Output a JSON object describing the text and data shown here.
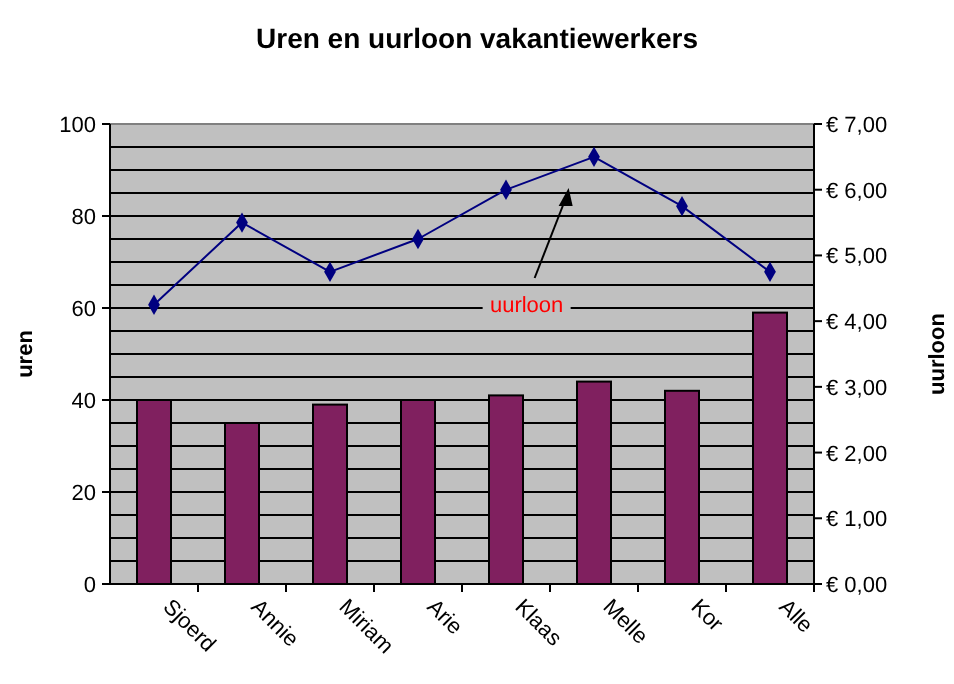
{
  "chart_data": {
    "type": "bar",
    "title": "Uren en uurloon vakantiewerkers",
    "ylabel": "uren",
    "y2label": "uurloon",
    "categories": [
      "Sjoerd",
      "Annie",
      "Miriam",
      "Arie",
      "Klaas",
      "Melle",
      "Kor",
      "Alle"
    ],
    "series": [
      {
        "color": "#80205f",
        "values": [
          40,
          35,
          39,
          40,
          41,
          44,
          42,
          59
        ]
      },
      {
        "type": "line",
        "axis": "y2",
        "color": "#000080",
        "marker": "diamond",
        "line_style": "solid",
        "values": [
          4.25,
          5.5,
          4.75,
          5.25,
          6.0,
          6.5,
          5.75,
          4.75
        ]
      }
    ],
    "ylim": [
      0,
      100
    ],
    "yticks": [
      0,
      {
        "value": 5,
        "label": null
      },
      {
        "value": 10,
        "label": null
      },
      {
        "value": 15,
        "label": null
      },
      20,
      {
        "value": 25,
        "label": null
      },
      {
        "value": 30,
        "label": null
      },
      {
        "value": 35,
        "label": null
      },
      40,
      {
        "value": 45,
        "label": null
      },
      {
        "value": 50,
        "label": null
      },
      {
        "value": 55,
        "label": null
      },
      60,
      {
        "value": 65,
        "label": null
      },
      {
        "value": 70,
        "label": null
      },
      {
        "value": 75,
        "label": null
      },
      80,
      {
        "value": 85,
        "label": null
      },
      {
        "value": 90,
        "label": null
      },
      {
        "value": 95,
        "label": null
      },
      100
    ],
    "y2lim": [
      0,
      7
    ],
    "y2ticks": [
      {
        "value": 0,
        "label": "€ 0,00"
      },
      {
        "value": 1,
        "label": "€ 1,00"
      },
      {
        "value": 2,
        "label": "€ 2,00"
      },
      {
        "value": 3,
        "label": "€ 3,00"
      },
      {
        "value": 4,
        "label": "€ 4,00"
      },
      {
        "value": 5,
        "label": "€ 5,00"
      },
      {
        "value": 6,
        "label": "€ 6,00"
      },
      {
        "value": 7,
        "label": "€ 7,00"
      }
    ],
    "grid": "y",
    "annotations": [
      "uurloon"
    ]
  }
}
